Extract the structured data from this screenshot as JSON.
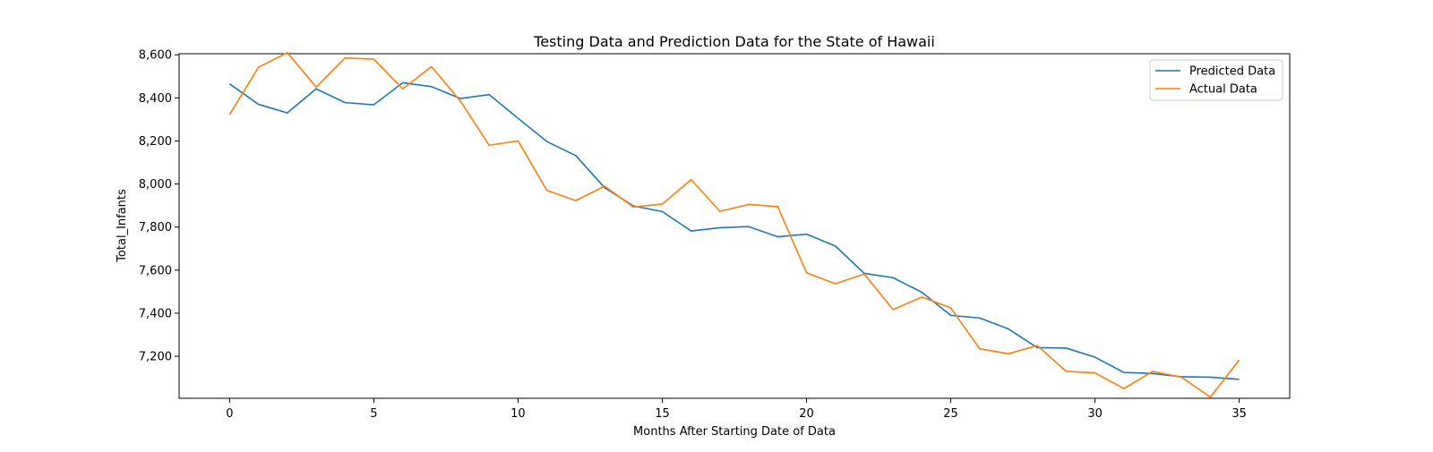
{
  "chart_data": {
    "type": "line",
    "title": "Testing Data and Prediction Data for the State of Hawaii",
    "xlabel": "Months After Starting Date of Data",
    "ylabel": "Total_Infants",
    "xlim": [
      -1.75,
      36.75
    ],
    "ylim": [
      7005,
      8605
    ],
    "x_ticks": [
      0,
      5,
      10,
      15,
      20,
      25,
      30,
      35
    ],
    "x_tick_labels": [
      "0",
      "5",
      "10",
      "15",
      "20",
      "25",
      "30",
      "35"
    ],
    "y_ticks": [
      7200,
      7400,
      7600,
      7800,
      8000,
      8200,
      8400,
      8600
    ],
    "y_tick_labels": [
      "7,200",
      "7,400",
      "7,600",
      "7,800",
      "8,000",
      "8,200",
      "8,400",
      "8,600"
    ],
    "legend_position": "top-right",
    "grid": false,
    "x": [
      0,
      1,
      2,
      3,
      4,
      5,
      6,
      7,
      8,
      9,
      10,
      11,
      12,
      13,
      14,
      15,
      16,
      17,
      18,
      19,
      20,
      21,
      22,
      23,
      24,
      25,
      26,
      27,
      28,
      29,
      30,
      31,
      32,
      33,
      34,
      35
    ],
    "series": [
      {
        "name": "Predicted Data",
        "color": "#1f77b4",
        "values": [
          8465,
          8370,
          8330,
          8442,
          8378,
          8368,
          8470,
          8452,
          8397,
          8415,
          8305,
          8197,
          8132,
          7983,
          7898,
          7872,
          7782,
          7797,
          7802,
          7755,
          7767,
          7712,
          7585,
          7565,
          7497,
          7390,
          7378,
          7327,
          7240,
          7238,
          7196,
          7125,
          7120,
          7105,
          7103,
          7093
        ]
      },
      {
        "name": "Actual Data",
        "color": "#ff7f0e",
        "values": [
          8322,
          8542,
          8610,
          8450,
          8585,
          8580,
          8442,
          8545,
          8385,
          8180,
          8200,
          7970,
          7923,
          7990,
          7893,
          7907,
          8020,
          7873,
          7905,
          7895,
          7588,
          7537,
          7582,
          7417,
          7475,
          7425,
          7235,
          7212,
          7250,
          7130,
          7123,
          7050,
          7130,
          7103,
          7010,
          7183
        ]
      }
    ]
  }
}
